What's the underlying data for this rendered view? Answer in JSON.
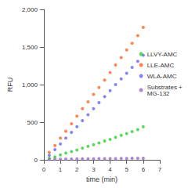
{
  "chart_data": {
    "type": "scatter",
    "x_label": "time (min)",
    "y_label": "RFU",
    "xlim": [
      0,
      7
    ],
    "xticks": [
      0,
      1,
      2,
      3,
      4,
      5,
      6,
      7
    ],
    "ylim": [
      0,
      2000
    ],
    "yticks": [
      0,
      500,
      1000,
      1500,
      2000
    ],
    "grid": false,
    "legend": "right",
    "marker": "circle",
    "x": [
      0.33,
      0.67,
      1,
      1.33,
      1.67,
      2,
      2.33,
      2.67,
      3,
      3.33,
      3.67,
      4,
      4.33,
      4.67,
      5,
      5.33,
      5.67,
      6
    ],
    "series": [
      {
        "name": "LLVY-AMC",
        "color": "#33cc33",
        "values": [
          20,
          40,
          65,
          90,
          110,
          130,
          155,
          180,
          200,
          225,
          250,
          270,
          300,
          325,
          350,
          375,
          400,
          440
        ]
      },
      {
        "name": "LLE-AMC",
        "color": "#ff6622",
        "values": [
          100,
          190,
          290,
          380,
          480,
          580,
          680,
          770,
          870,
          960,
          1060,
          1160,
          1260,
          1360,
          1460,
          1550,
          1650,
          1760
        ]
      },
      {
        "name": "WLA-AMC",
        "color": "#6666ee",
        "values": [
          60,
          135,
          210,
          290,
          365,
          440,
          520,
          600,
          680,
          760,
          840,
          920,
          1000,
          1075,
          1150,
          1230,
          1310,
          1390
        ]
      },
      {
        "name": "Substrates + MG-132",
        "color": "#9966cc",
        "values": [
          5,
          8,
          8,
          10,
          10,
          12,
          12,
          14,
          14,
          15,
          15,
          16,
          16,
          18,
          18,
          20,
          20,
          20
        ]
      }
    ]
  }
}
